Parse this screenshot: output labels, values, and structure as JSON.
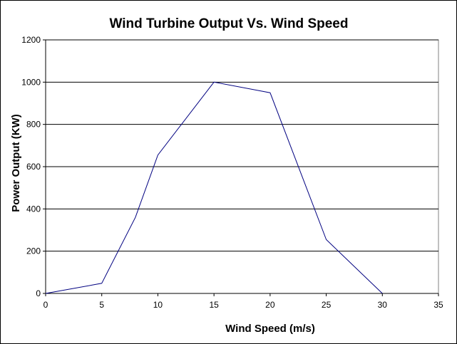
{
  "chart_data": {
    "type": "line",
    "title": "Wind Turbine Output Vs. Wind Speed",
    "xlabel": "Wind Speed (m/s)",
    "ylabel": "Power Output (KW)",
    "xlim": [
      0,
      35
    ],
    "ylim": [
      0,
      1200
    ],
    "xticks": [
      0,
      5,
      10,
      15,
      20,
      25,
      30,
      35
    ],
    "yticks": [
      0,
      200,
      400,
      600,
      800,
      1000,
      1200
    ],
    "grid": "horizontal",
    "series": [
      {
        "x": [
          0,
          5,
          8,
          10,
          15,
          20,
          25,
          30
        ],
        "y": [
          0,
          48,
          360,
          655,
          1000,
          950,
          255,
          0
        ],
        "color": "#000080"
      }
    ],
    "colors": {
      "background": "#ffffff",
      "plot_background": "#ffffff",
      "gridline": "#000000",
      "line": "#000080"
    }
  }
}
